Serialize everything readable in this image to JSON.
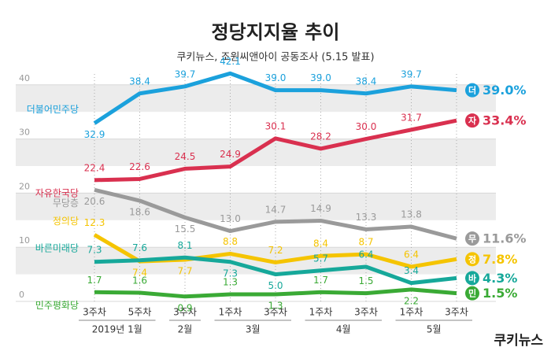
{
  "chart_data": {
    "type": "line",
    "title": "정당지지율 추이",
    "subtitle": "쿠키뉴스, 조원씨앤아이 공동조사 (5.15 발표)",
    "source_logo": "쿠키뉴스",
    "categories": [
      "3주차",
      "5주차",
      "3주차",
      "1주차",
      "3주차",
      "1주차",
      "3주차",
      "1주차",
      "3주차"
    ],
    "x_groups": [
      {
        "label": "2019년 1월",
        "span": 2
      },
      {
        "label": "2월",
        "span": 1
      },
      {
        "label": "3월",
        "span": 2
      },
      {
        "label": "4월",
        "span": 2
      },
      {
        "label": "5월",
        "span": 2
      }
    ],
    "ylim": [
      0,
      42
    ],
    "yticks": [
      0,
      10,
      20,
      30,
      40
    ],
    "grid": true,
    "series": [
      {
        "name": "더불어민주당",
        "badge": "더",
        "color": "#1ba1dc",
        "values": [
          32.9,
          38.4,
          39.7,
          42.1,
          39.0,
          39.0,
          38.4,
          39.7,
          39.0
        ],
        "value_labels": [
          "32.9",
          "38.4",
          "39.7",
          "42.1",
          "39.0",
          "39.0",
          "38.4",
          "39.7",
          "39.0%"
        ]
      },
      {
        "name": "자유한국당",
        "badge": "자",
        "color": "#d9304f",
        "values": [
          22.4,
          22.6,
          24.5,
          24.9,
          30.1,
          28.2,
          30.0,
          31.7,
          33.4
        ],
        "value_labels": [
          "22.4",
          "22.6",
          "24.5",
          "24.9",
          "30.1",
          "28.2",
          "30.0",
          "31.7",
          "33.4%"
        ]
      },
      {
        "name": "무당층",
        "badge": "무",
        "color": "#9a9a9a",
        "values": [
          20.6,
          18.6,
          15.5,
          13.0,
          14.7,
          14.9,
          13.3,
          13.8,
          11.6
        ],
        "value_labels": [
          "20.6",
          "18.6",
          "15.5",
          "13.0",
          "14.7",
          "14.9",
          "13.3",
          "13.8",
          "11.6%"
        ]
      },
      {
        "name": "정의당",
        "badge": "정",
        "color": "#f5c400",
        "values": [
          12.3,
          7.4,
          7.7,
          8.8,
          7.2,
          8.4,
          8.7,
          6.4,
          7.8
        ],
        "value_labels": [
          "12.3",
          "7.4",
          "7.7",
          "8.8",
          "7.2",
          "8.4",
          "8.7",
          "6.4",
          "7.8%"
        ]
      },
      {
        "name": "바른미래당",
        "badge": "바",
        "color": "#16a89a",
        "values": [
          7.3,
          7.6,
          8.1,
          7.3,
          5.0,
          5.7,
          6.4,
          3.4,
          4.3
        ],
        "value_labels": [
          "7.3",
          "7.6",
          "8.1",
          "7.3",
          "5.0",
          "5.7",
          "6.4",
          "3.4",
          "4.3%"
        ]
      },
      {
        "name": "민주평화당",
        "badge": "민",
        "color": "#3aaa35",
        "values": [
          1.7,
          1.6,
          0.9,
          1.3,
          1.3,
          1.7,
          1.5,
          2.2,
          1.5
        ],
        "value_labels": [
          "1.7",
          "1.6",
          "0.9",
          "1.3",
          "1.3",
          "1.7",
          "1.5",
          "2.2",
          "1.5%"
        ]
      }
    ]
  }
}
